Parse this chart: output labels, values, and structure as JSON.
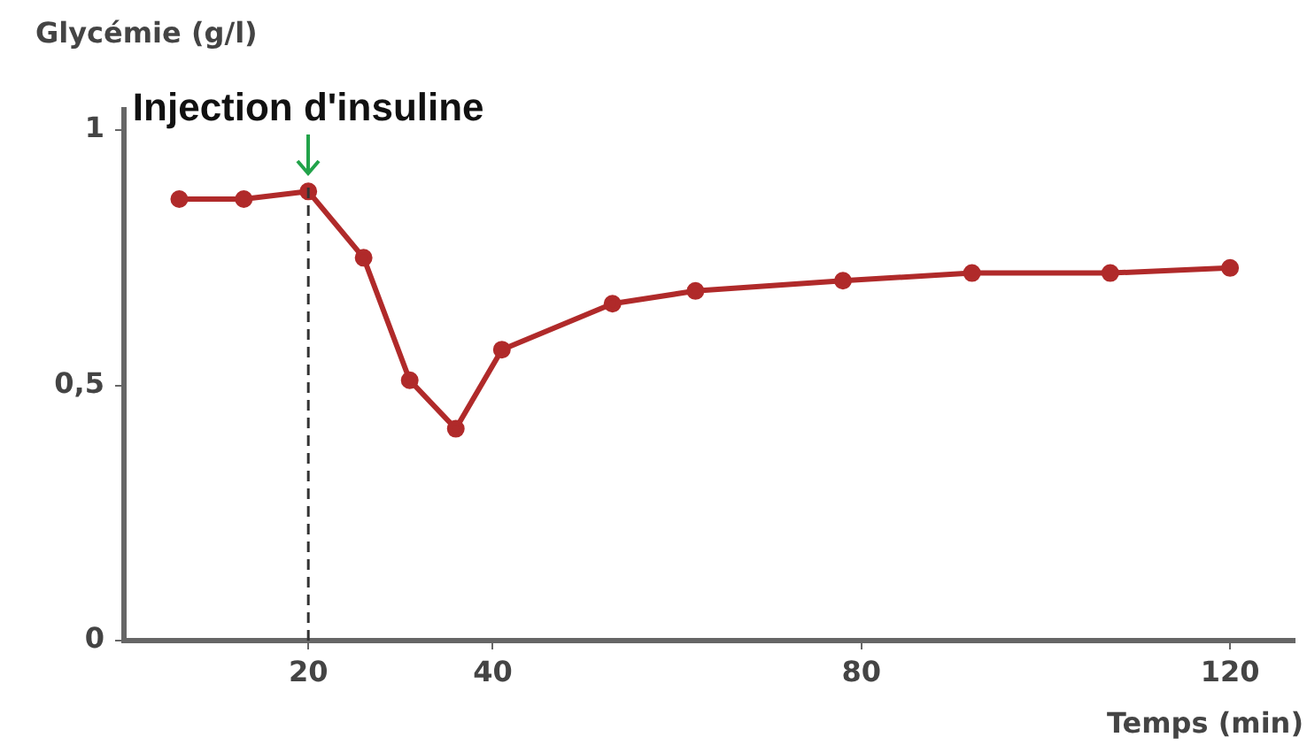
{
  "chart_data": {
    "type": "line",
    "ylabel": "Glycémie (g/l)",
    "xlabel": "Temps (min)",
    "x": [
      6,
      13,
      20,
      26,
      31,
      36,
      41,
      53,
      62,
      78,
      92,
      107,
      120
    ],
    "series": [
      {
        "color": "#b02a2a",
        "values": [
          0.865,
          0.865,
          0.88,
          0.75,
          0.51,
          0.415,
          0.57,
          0.66,
          0.685,
          0.705,
          0.72,
          0.72,
          0.73
        ]
      }
    ],
    "xlim": [
      0,
      127
    ],
    "xticks": [
      20,
      40,
      80,
      120
    ],
    "ylim": [
      0,
      1.04
    ],
    "yticks": [
      0,
      {
        "value": 0.5,
        "label": "0,5"
      },
      1
    ],
    "ref_lines": [
      {
        "axis": "x",
        "value": 20,
        "label": "Injection d'insuline",
        "color": "#333333",
        "line_style": "dashed"
      }
    ],
    "grid": false,
    "legend": false,
    "marker": "circle",
    "line_style": "solid"
  }
}
